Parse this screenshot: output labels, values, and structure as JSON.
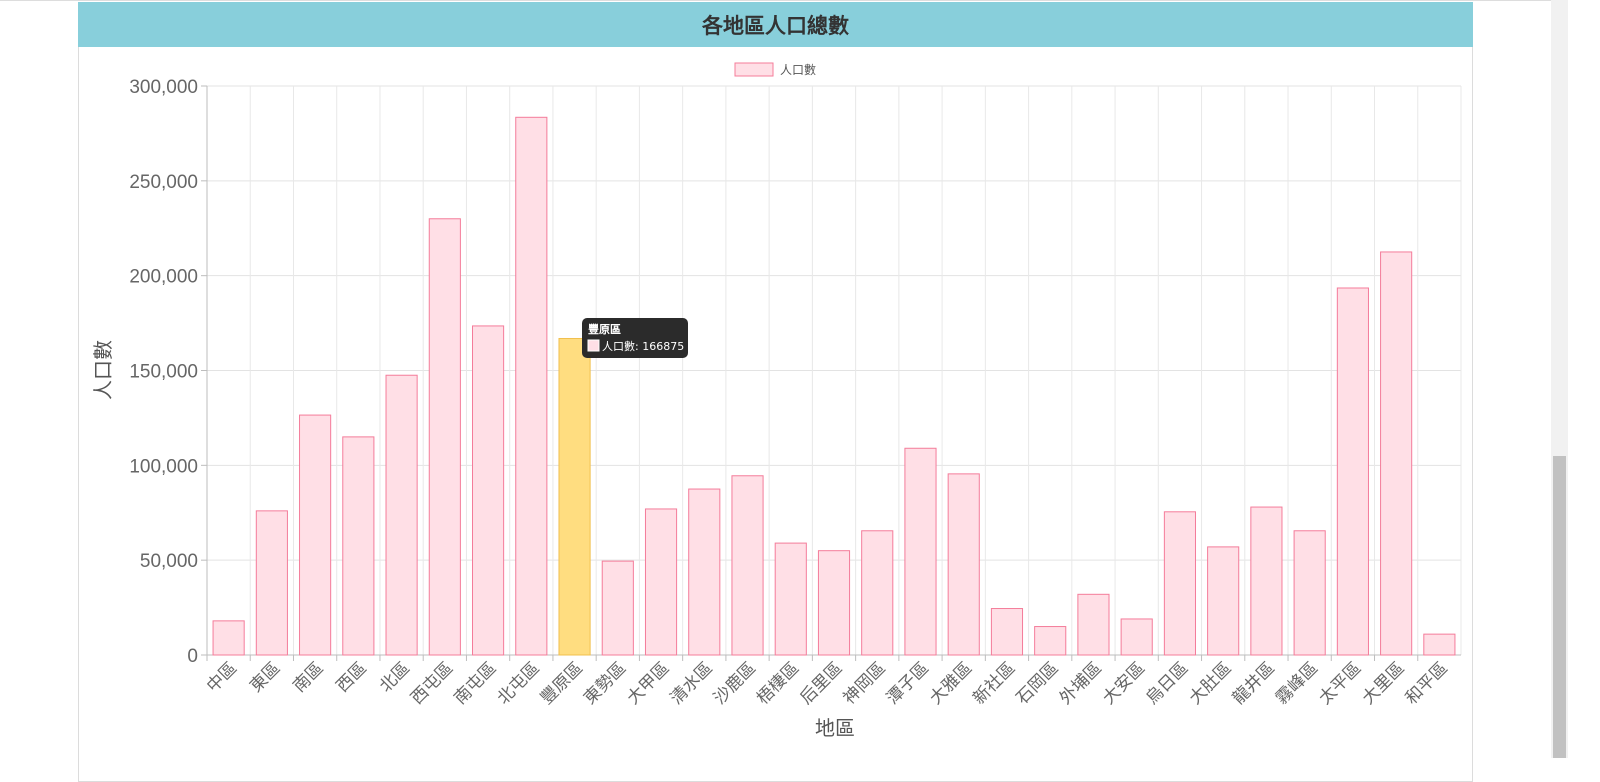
{
  "page": {
    "header_title": "各地區人口總數"
  },
  "chart_data": {
    "type": "bar",
    "title": "",
    "xlabel": "地區",
    "ylabel": "人口數",
    "ylim": [
      0,
      300000
    ],
    "yticks": [
      0,
      50000,
      100000,
      150000,
      200000,
      250000,
      300000
    ],
    "ytick_labels": [
      "0",
      "50,000",
      "100,000",
      "150,000",
      "200,000",
      "250,000",
      "300,000"
    ],
    "grid": true,
    "legend_position": "top-center",
    "categories": [
      "中區",
      "東區",
      "南區",
      "西區",
      "北區",
      "西屯區",
      "南屯區",
      "北屯區",
      "豐原區",
      "東勢區",
      "大甲區",
      "清水區",
      "沙鹿區",
      "梧棲區",
      "后里區",
      "神岡區",
      "潭子區",
      "大雅區",
      "新社區",
      "石岡區",
      "外埔區",
      "大安區",
      "烏日區",
      "大肚區",
      "龍井區",
      "霧峰區",
      "太平區",
      "大里區",
      "和平區"
    ],
    "series": [
      {
        "name": "人口數",
        "values": [
          18000,
          76000,
          126500,
          115000,
          147500,
          230000,
          173500,
          283500,
          166875,
          49500,
          77000,
          87500,
          94500,
          59000,
          55000,
          65500,
          109000,
          95500,
          24500,
          15000,
          32000,
          19000,
          75500,
          57000,
          78000,
          65500,
          193500,
          212500,
          11000
        ],
        "fill_color": "#ffdfe6",
        "border_color": "#f47c9a"
      }
    ],
    "highlight": {
      "index": 8,
      "fill_color": "#ffdd80",
      "border_color": "#f1c04d"
    },
    "tooltip": {
      "title": "豐原區",
      "label": "人口數: 166875",
      "background": "#2b2b2b"
    }
  }
}
